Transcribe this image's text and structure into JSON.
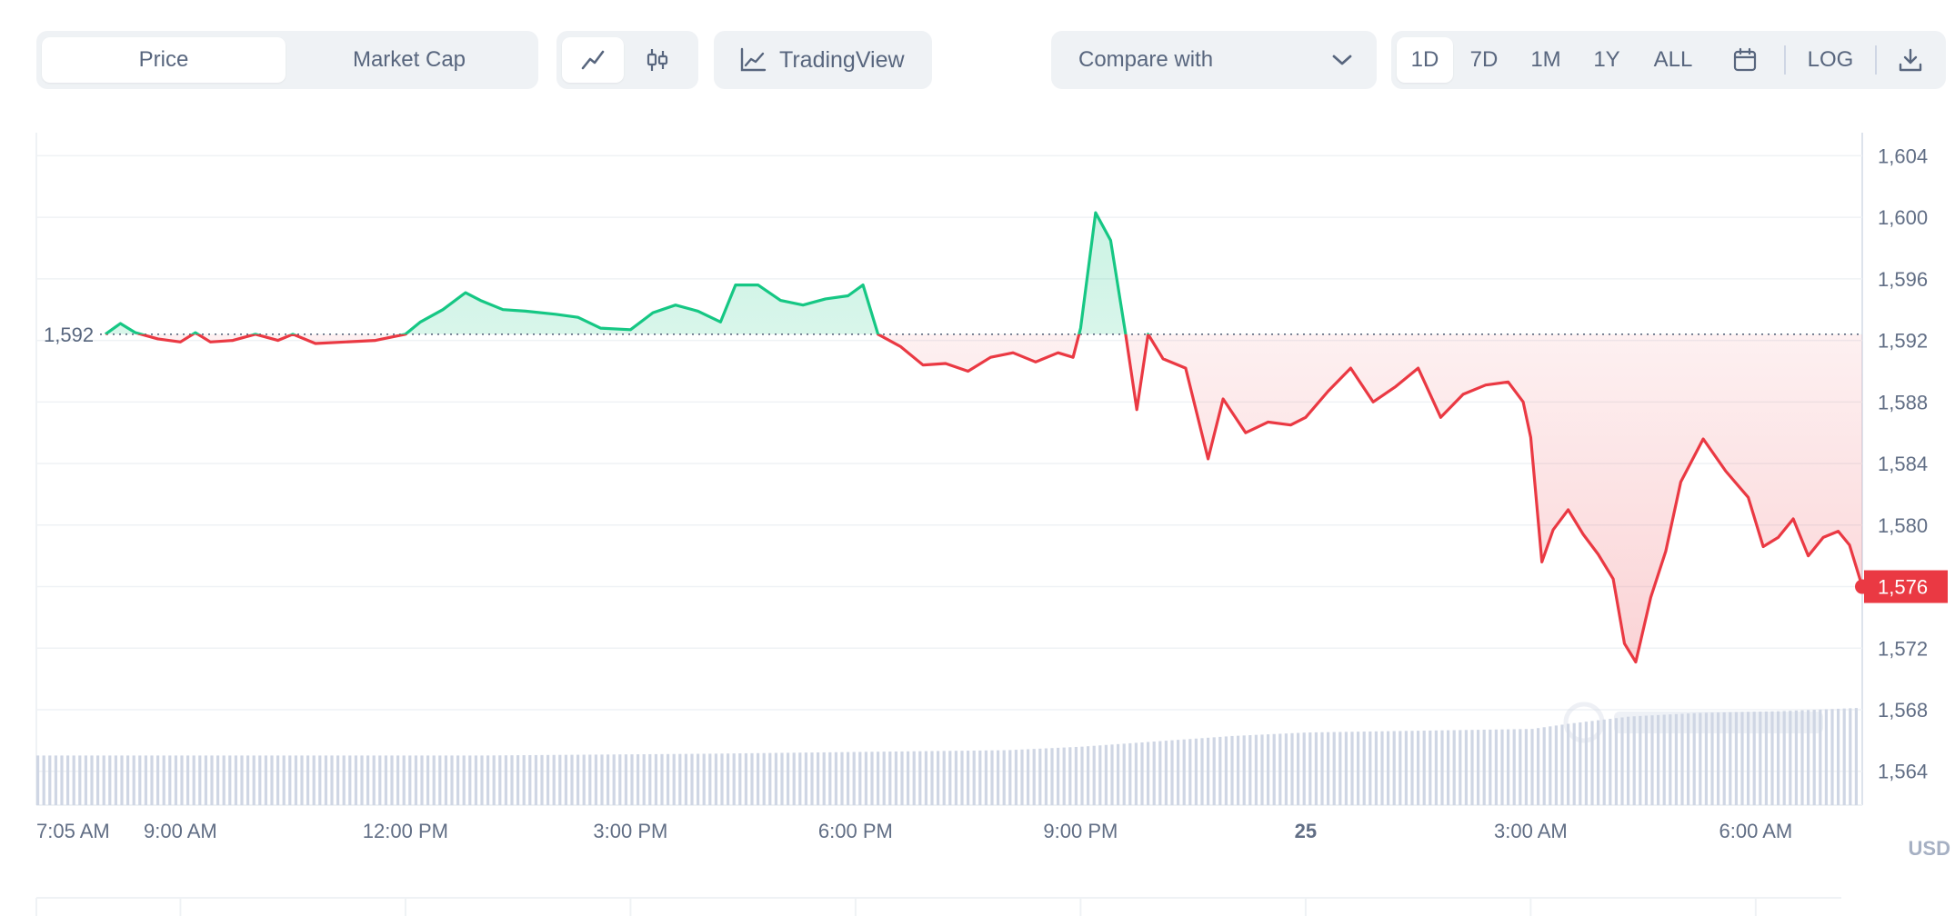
{
  "toolbar": {
    "view_tabs": [
      {
        "label": "Price",
        "active": true
      },
      {
        "label": "Market Cap",
        "active": false
      }
    ],
    "chart_type_icons": [
      "line-chart-icon",
      "candlestick-icon"
    ],
    "tradingview_label": "TradingView",
    "compare_placeholder": "Compare with",
    "ranges": [
      {
        "label": "1D",
        "active": true
      },
      {
        "label": "7D",
        "active": false
      },
      {
        "label": "1M",
        "active": false
      },
      {
        "label": "1Y",
        "active": false
      },
      {
        "label": "ALL",
        "active": false
      }
    ],
    "log_label": "LOG"
  },
  "colors": {
    "up": "#16c784",
    "down": "#ea3943",
    "volume": "#cfd6e4",
    "grid": "#eff2f5"
  },
  "chart_data": {
    "type": "line",
    "currency": "USD",
    "reference_label": "1,592",
    "reference_value": 1592.4,
    "current_label": "1,576",
    "y_ticks": [
      {
        "label": "1,604",
        "value": 1604
      },
      {
        "label": "1,600",
        "value": 1600
      },
      {
        "label": "1,596",
        "value": 1596
      },
      {
        "label": "1,592",
        "value": 1592
      },
      {
        "label": "1,588",
        "value": 1588
      },
      {
        "label": "1,584",
        "value": 1584
      },
      {
        "label": "1,580",
        "value": 1580
      },
      {
        "label": "1,576",
        "value": 1576
      },
      {
        "label": "1,572",
        "value": 1572
      },
      {
        "label": "1,568",
        "value": 1568
      },
      {
        "label": "1,564",
        "value": 1564
      }
    ],
    "ylim": [
      1561.8,
      1605.5
    ],
    "x_range_hours": [
      7.08,
      31.42
    ],
    "x_ticks": [
      {
        "label": "7:05 AM",
        "hour": 7.08,
        "bold": false
      },
      {
        "label": "9:00 AM",
        "hour": 9.0,
        "bold": false
      },
      {
        "label": "12:00 PM",
        "hour": 12.0,
        "bold": false
      },
      {
        "label": "3:00 PM",
        "hour": 15.0,
        "bold": false
      },
      {
        "label": "6:00 PM",
        "hour": 18.0,
        "bold": false
      },
      {
        "label": "9:00 PM",
        "hour": 21.0,
        "bold": false
      },
      {
        "label": "25",
        "hour": 24.0,
        "bold": true
      },
      {
        "label": "3:00 AM",
        "hour": 27.0,
        "bold": false
      },
      {
        "label": "6:00 AM",
        "hour": 30.0,
        "bold": false
      }
    ],
    "price_series": [
      [
        8.0,
        1592.4
      ],
      [
        8.2,
        1593.1
      ],
      [
        8.4,
        1592.5
      ],
      [
        8.7,
        1592.1
      ],
      [
        9.0,
        1591.9
      ],
      [
        9.2,
        1592.5
      ],
      [
        9.4,
        1591.9
      ],
      [
        9.7,
        1592.0
      ],
      [
        10.0,
        1592.4
      ],
      [
        10.3,
        1592.0
      ],
      [
        10.5,
        1592.4
      ],
      [
        10.8,
        1591.8
      ],
      [
        11.2,
        1591.9
      ],
      [
        11.6,
        1592.0
      ],
      [
        12.0,
        1592.4
      ],
      [
        12.2,
        1593.2
      ],
      [
        12.5,
        1594.0
      ],
      [
        12.8,
        1595.1
      ],
      [
        13.0,
        1594.6
      ],
      [
        13.3,
        1594.0
      ],
      [
        13.6,
        1593.9
      ],
      [
        14.0,
        1593.7
      ],
      [
        14.3,
        1593.5
      ],
      [
        14.6,
        1592.8
      ],
      [
        15.0,
        1592.7
      ],
      [
        15.3,
        1593.8
      ],
      [
        15.6,
        1594.3
      ],
      [
        15.9,
        1593.9
      ],
      [
        16.2,
        1593.2
      ],
      [
        16.4,
        1595.6
      ],
      [
        16.7,
        1595.6
      ],
      [
        17.0,
        1594.6
      ],
      [
        17.3,
        1594.3
      ],
      [
        17.6,
        1594.7
      ],
      [
        17.9,
        1594.9
      ],
      [
        18.1,
        1595.6
      ],
      [
        18.3,
        1592.4
      ],
      [
        18.6,
        1591.6
      ],
      [
        18.9,
        1590.4
      ],
      [
        19.2,
        1590.5
      ],
      [
        19.5,
        1590.0
      ],
      [
        19.8,
        1590.9
      ],
      [
        20.1,
        1591.2
      ],
      [
        20.4,
        1590.6
      ],
      [
        20.7,
        1591.2
      ],
      [
        20.9,
        1590.9
      ],
      [
        21.0,
        1592.8
      ],
      [
        21.2,
        1600.3
      ],
      [
        21.4,
        1598.5
      ],
      [
        21.6,
        1592.4
      ],
      [
        21.75,
        1587.5
      ],
      [
        21.9,
        1592.4
      ],
      [
        22.1,
        1590.8
      ],
      [
        22.4,
        1590.2
      ],
      [
        22.7,
        1584.3
      ],
      [
        22.9,
        1588.2
      ],
      [
        23.2,
        1586.0
      ],
      [
        23.5,
        1586.7
      ],
      [
        23.8,
        1586.5
      ],
      [
        24.0,
        1587.0
      ],
      [
        24.3,
        1588.7
      ],
      [
        24.6,
        1590.2
      ],
      [
        24.9,
        1588.0
      ],
      [
        25.2,
        1589.0
      ],
      [
        25.5,
        1590.2
      ],
      [
        25.8,
        1587.0
      ],
      [
        26.1,
        1588.5
      ],
      [
        26.4,
        1589.1
      ],
      [
        26.7,
        1589.3
      ],
      [
        26.9,
        1588.0
      ],
      [
        27.0,
        1585.7
      ],
      [
        27.15,
        1577.6
      ],
      [
        27.3,
        1579.7
      ],
      [
        27.5,
        1581.0
      ],
      [
        27.7,
        1579.4
      ],
      [
        27.9,
        1578.1
      ],
      [
        28.1,
        1576.5
      ],
      [
        28.25,
        1572.3
      ],
      [
        28.4,
        1571.1
      ],
      [
        28.6,
        1575.3
      ],
      [
        28.8,
        1578.3
      ],
      [
        29.0,
        1582.8
      ],
      [
        29.3,
        1585.6
      ],
      [
        29.6,
        1583.5
      ],
      [
        29.9,
        1581.8
      ],
      [
        30.1,
        1578.6
      ],
      [
        30.3,
        1579.2
      ],
      [
        30.5,
        1580.4
      ],
      [
        30.7,
        1578.0
      ],
      [
        30.9,
        1579.2
      ],
      [
        31.1,
        1579.6
      ],
      [
        31.25,
        1578.7
      ],
      [
        31.42,
        1576.0
      ]
    ],
    "volume_series": [
      [
        7.08,
        0.28
      ],
      [
        10.0,
        0.28
      ],
      [
        13.0,
        0.28
      ],
      [
        16.0,
        0.29
      ],
      [
        18.0,
        0.3
      ],
      [
        20.0,
        0.31
      ],
      [
        21.0,
        0.33
      ],
      [
        22.0,
        0.36
      ],
      [
        23.0,
        0.39
      ],
      [
        24.0,
        0.41
      ],
      [
        25.5,
        0.42
      ],
      [
        27.0,
        0.43
      ],
      [
        27.5,
        0.46
      ],
      [
        28.3,
        0.5
      ],
      [
        29.2,
        0.52
      ],
      [
        30.3,
        0.53
      ],
      [
        31.42,
        0.55
      ]
    ]
  }
}
